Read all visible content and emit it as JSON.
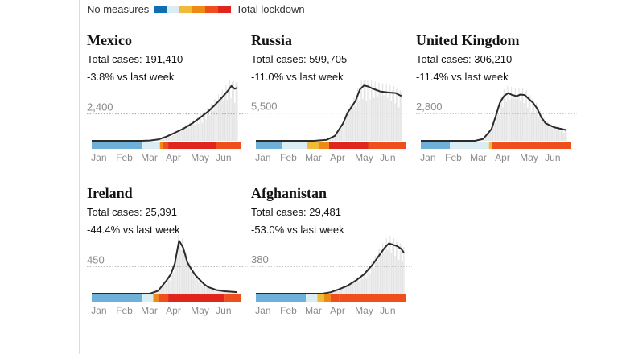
{
  "legend": {
    "low_label": "No measures",
    "high_label": "Total lockdown",
    "scale_colors": [
      "#0f6fb0",
      "#6fb0d8",
      "#dcecf3",
      "#f1bb3a",
      "#f08a17",
      "#ee4f1c",
      "#e0261c"
    ]
  },
  "colors": {
    "line": "#2b2b2b",
    "spikes": "#e3e3e3",
    "reference_line": "#a8a8a8",
    "tick_text": "#8a8a8a"
  },
  "chart_data": [
    {
      "type": "line",
      "title": "Mexico",
      "total_label": "Total cases: 191,410",
      "change_label": "-3.8% vs last week",
      "xlabels": [
        "Jan",
        "Feb",
        "Mar",
        "Apr",
        "May",
        "Jun"
      ],
      "xlim": [
        0,
        180
      ],
      "ylim": [
        0,
        5400
      ],
      "reference": {
        "value": 2400,
        "label": "2,400"
      },
      "series": {
        "x": [
          0,
          60,
          70,
          80,
          90,
          100,
          110,
          120,
          130,
          140,
          150,
          155,
          160,
          165,
          168,
          172,
          175
        ],
        "y": [
          0,
          0,
          30,
          120,
          380,
          720,
          1080,
          1520,
          2050,
          2620,
          3350,
          3750,
          4150,
          4600,
          4900,
          4650,
          4750
        ]
      },
      "stringency": [
        {
          "start": 0,
          "end": 60,
          "level": 1
        },
        {
          "start": 60,
          "end": 82,
          "level": 2
        },
        {
          "start": 82,
          "end": 86,
          "level": 4
        },
        {
          "start": 86,
          "end": 92,
          "level": 5
        },
        {
          "start": 92,
          "end": 150,
          "level": 6
        },
        {
          "start": 150,
          "end": 180,
          "level": 5
        }
      ]
    },
    {
      "type": "line",
      "title": "Russia",
      "total_label": "Total cases: 599,705",
      "change_label": "-11.0% vs last week",
      "xlabels": [
        "Jan",
        "Feb",
        "Mar",
        "Apr",
        "May",
        "Jun"
      ],
      "xlim": [
        0,
        180
      ],
      "ylim": [
        0,
        12000
      ],
      "reference": {
        "value": 5500,
        "label": "5,500"
      },
      "series": {
        "x": [
          0,
          70,
          85,
          95,
          105,
          110,
          115,
          120,
          125,
          130,
          135,
          140,
          150,
          160,
          168,
          175
        ],
        "y": [
          0,
          0,
          200,
          1000,
          3500,
          5500,
          6700,
          8000,
          10200,
          11000,
          10800,
          10400,
          9800,
          9600,
          9500,
          8900
        ]
      },
      "stringency": [
        {
          "start": 0,
          "end": 32,
          "level": 1
        },
        {
          "start": 32,
          "end": 62,
          "level": 2
        },
        {
          "start": 62,
          "end": 76,
          "level": 3
        },
        {
          "start": 76,
          "end": 88,
          "level": 4
        },
        {
          "start": 88,
          "end": 135,
          "level": 6
        },
        {
          "start": 135,
          "end": 180,
          "level": 5
        }
      ]
    },
    {
      "type": "line",
      "title": "United Kingdom",
      "total_label": "Total cases: 306,210",
      "change_label": "-11.4% vs last week",
      "xlabels": [
        "Jan",
        "Feb",
        "Mar",
        "Apr",
        "May",
        "Jun"
      ],
      "xlim": [
        0,
        180
      ],
      "ylim": [
        0,
        6200
      ],
      "reference": {
        "value": 2800,
        "label": "2,800"
      },
      "series": {
        "x": [
          0,
          65,
          75,
          85,
          90,
          95,
          100,
          105,
          110,
          115,
          120,
          125,
          130,
          135,
          140,
          145,
          150,
          160,
          170,
          175
        ],
        "y": [
          0,
          0,
          200,
          1200,
          2500,
          3900,
          4600,
          4900,
          4700,
          4600,
          4750,
          4700,
          4300,
          3900,
          3300,
          2400,
          1800,
          1400,
          1200,
          1100
        ]
      },
      "stringency": [
        {
          "start": 0,
          "end": 35,
          "level": 1
        },
        {
          "start": 35,
          "end": 82,
          "level": 2
        },
        {
          "start": 82,
          "end": 86,
          "level": 3
        },
        {
          "start": 86,
          "end": 180,
          "level": 5
        }
      ]
    },
    {
      "type": "line",
      "title": "Ireland",
      "total_label": "Total cases: 25,391",
      "change_label": "-44.4% vs last week",
      "xlabels": [
        "Jan",
        "Feb",
        "Mar",
        "Apr",
        "May",
        "Jun"
      ],
      "xlim": [
        0,
        180
      ],
      "ylim": [
        0,
        1000
      ],
      "reference": {
        "value": 450,
        "label": "450"
      },
      "series": {
        "x": [
          0,
          70,
          80,
          90,
          95,
          100,
          105,
          110,
          115,
          120,
          125,
          130,
          135,
          140,
          150,
          160,
          170,
          175
        ],
        "y": [
          0,
          0,
          50,
          220,
          320,
          500,
          880,
          760,
          520,
          400,
          300,
          230,
          160,
          110,
          60,
          40,
          30,
          25
        ]
      },
      "stringency": [
        {
          "start": 0,
          "end": 60,
          "level": 1
        },
        {
          "start": 60,
          "end": 74,
          "level": 2
        },
        {
          "start": 74,
          "end": 80,
          "level": 4
        },
        {
          "start": 80,
          "end": 92,
          "level": 5
        },
        {
          "start": 92,
          "end": 140,
          "level": 6
        },
        {
          "start": 140,
          "end": 160,
          "level": 6
        },
        {
          "start": 160,
          "end": 180,
          "level": 5
        }
      ]
    },
    {
      "type": "line",
      "title": "Afghanistan",
      "total_label": "Total cases: 29,481",
      "change_label": "-53.0% vs last week",
      "xlabels": [
        "Jan",
        "Feb",
        "Mar",
        "Apr",
        "May",
        "Jun"
      ],
      "xlim": [
        0,
        180
      ],
      "ylim": [
        0,
        840
      ],
      "reference": {
        "value": 380,
        "label": "380"
      },
      "series": {
        "x": [
          0,
          80,
          90,
          100,
          110,
          120,
          130,
          140,
          150,
          155,
          160,
          165,
          170,
          175,
          178
        ],
        "y": [
          0,
          0,
          20,
          60,
          110,
          180,
          270,
          400,
          560,
          640,
          700,
          680,
          660,
          620,
          570
        ]
      },
      "stringency": [
        {
          "start": 0,
          "end": 60,
          "level": 1
        },
        {
          "start": 60,
          "end": 74,
          "level": 2
        },
        {
          "start": 74,
          "end": 82,
          "level": 3
        },
        {
          "start": 82,
          "end": 90,
          "level": 4
        },
        {
          "start": 90,
          "end": 100,
          "level": 5
        },
        {
          "start": 100,
          "end": 180,
          "level": 5
        }
      ]
    }
  ]
}
